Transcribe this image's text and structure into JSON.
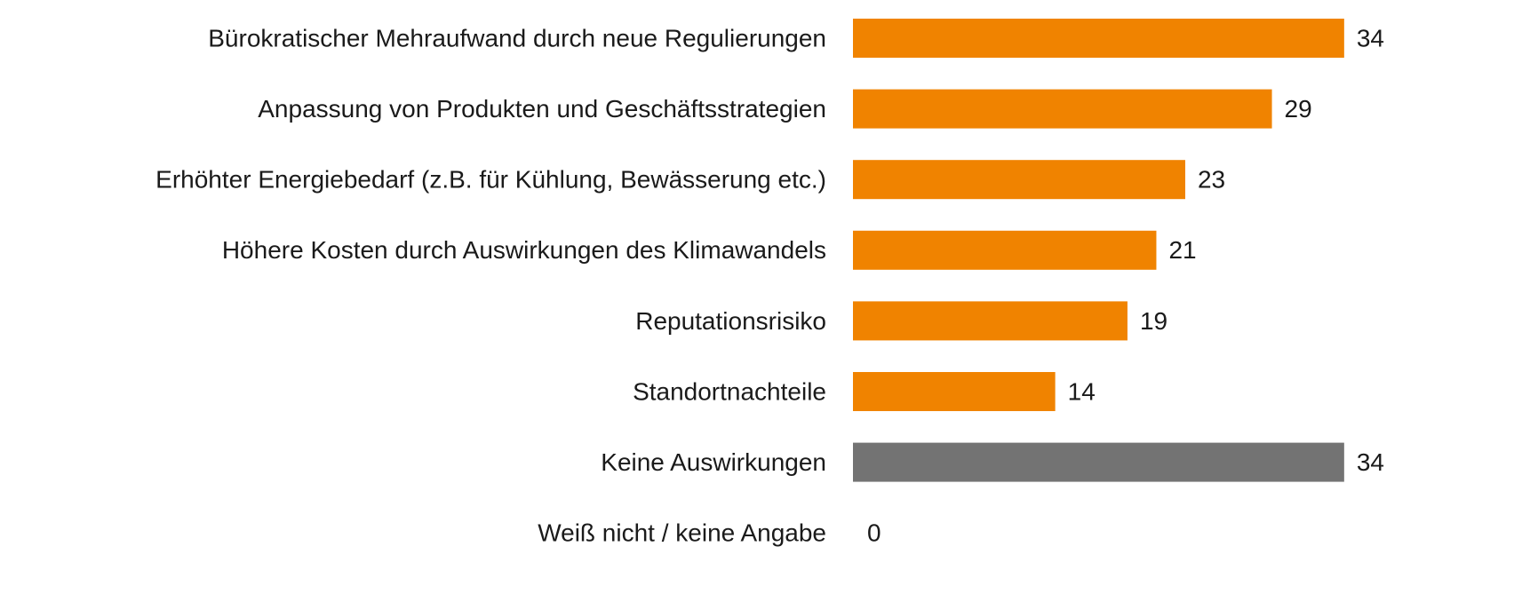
{
  "chart_data": {
    "type": "bar",
    "orientation": "horizontal",
    "categories": [
      "Bürokratischer Mehraufwand durch neue Regulierungen",
      "Anpassung von Produkten und Geschäftsstrategien",
      "Erhöhter Energiebedarf (z.B. für Kühlung, Bewässerung etc.)",
      "Höhere Kosten durch Auswirkungen des Klimawandels",
      "Reputationsrisiko",
      "Standortnachteile",
      "Keine Auswirkungen",
      "Weiß nicht / keine Angabe"
    ],
    "values": [
      34,
      29,
      23,
      21,
      19,
      14,
      34,
      0
    ],
    "colors": [
      "#f08300",
      "#f08300",
      "#f08300",
      "#f08300",
      "#f08300",
      "#f08300",
      "#737373",
      "#737373"
    ]
  }
}
